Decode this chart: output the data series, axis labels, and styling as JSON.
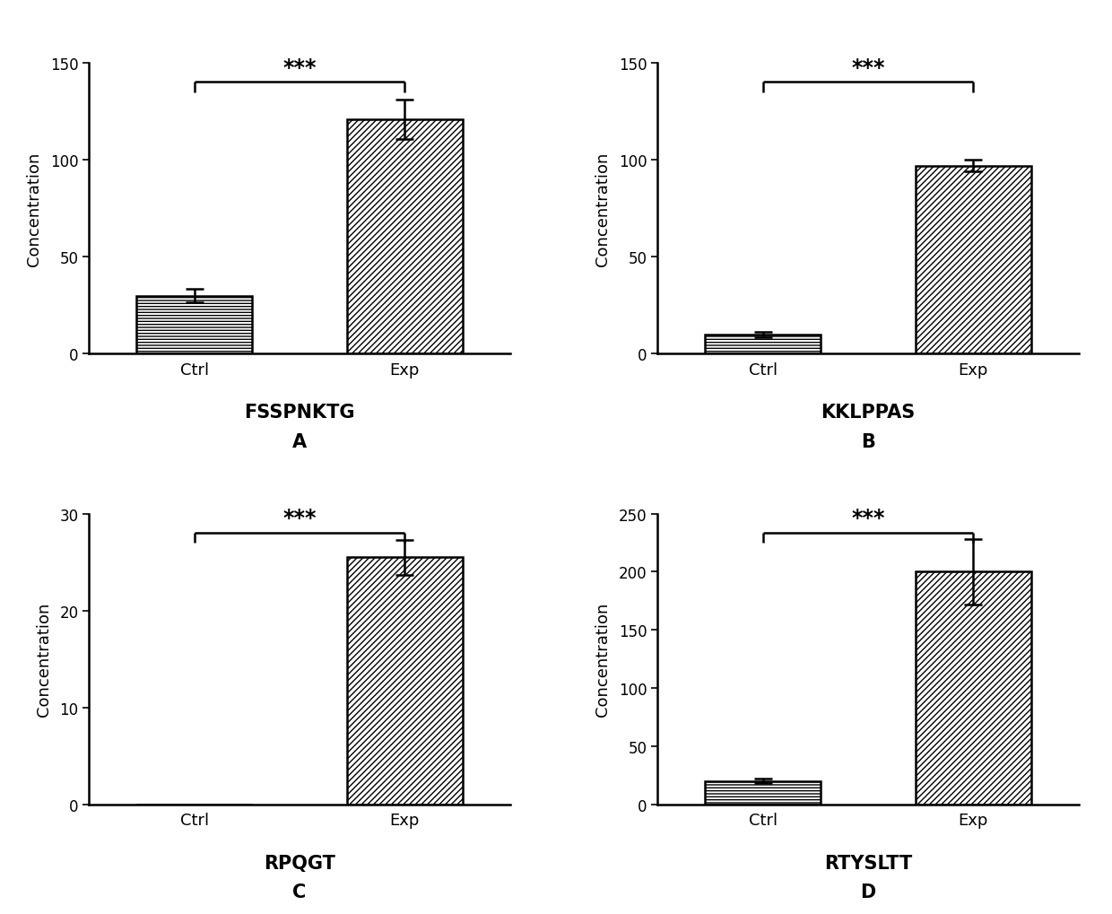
{
  "panels": [
    {
      "title": "FSSPNKTG",
      "label": "A",
      "ctrl_val": 30,
      "ctrl_err": 3.5,
      "exp_val": 121,
      "exp_err": 10,
      "ylim": [
        0,
        150
      ],
      "yticks": [
        0,
        50,
        100,
        150
      ],
      "ctrl_hatch": "-----",
      "exp_hatch": "/////"
    },
    {
      "title": "KKLPPAS",
      "label": "B",
      "ctrl_val": 10,
      "ctrl_err": 1.5,
      "exp_val": 97,
      "exp_err": 3,
      "ylim": [
        0,
        150
      ],
      "yticks": [
        0,
        50,
        100,
        150
      ],
      "ctrl_hatch": "-----",
      "exp_hatch": "/////"
    },
    {
      "title": "RPQGT",
      "label": "C",
      "ctrl_val": 0,
      "ctrl_err": 0,
      "exp_val": 25.5,
      "exp_err": 1.8,
      "ylim": [
        0,
        30
      ],
      "yticks": [
        0,
        10,
        20,
        30
      ],
      "ctrl_hatch": "",
      "exp_hatch": "/////"
    },
    {
      "title": "RTYSLTT",
      "label": "D",
      "ctrl_val": 20,
      "ctrl_err": 2,
      "exp_val": 200,
      "exp_err": 28,
      "ylim": [
        0,
        250
      ],
      "yticks": [
        0,
        50,
        100,
        150,
        200,
        250
      ],
      "ctrl_hatch": "-----",
      "exp_hatch": "/////"
    }
  ],
  "categories": [
    "Ctrl",
    "Exp"
  ],
  "significance": "***",
  "bar_color": "white",
  "bar_edgecolor": "black",
  "ylabel": "Concentration",
  "bar_width": 0.55,
  "background_color": "white"
}
